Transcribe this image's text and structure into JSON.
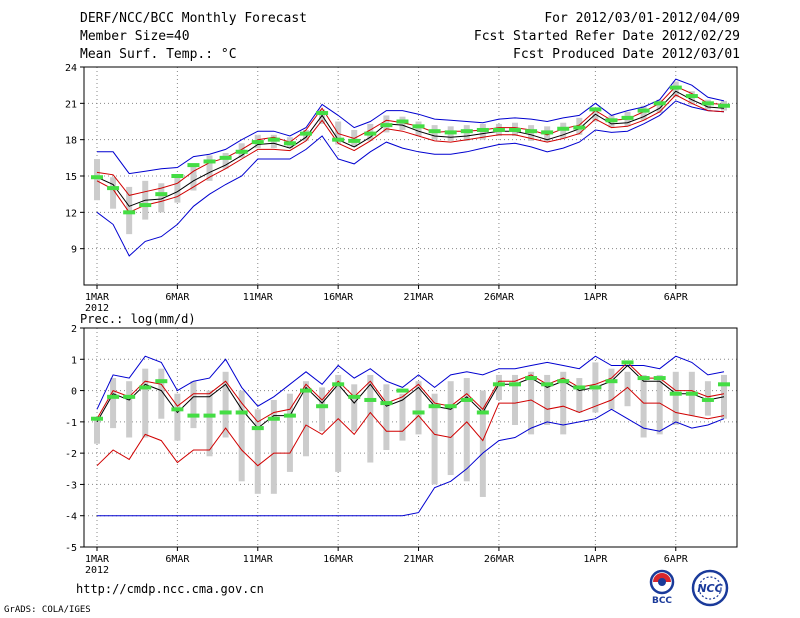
{
  "header": {
    "title": "DERF/NCC/BCC Monthly Forecast",
    "member_size": "Member Size=40",
    "variable": "Mean Surf. Temp.: °C",
    "forecast_period": "For 2012/03/01-2012/04/09",
    "start_refer_date": "Fcst Started Refer Date 2012/02/29",
    "produced_date": "Fcst Produced Date 2012/03/01"
  },
  "footer": {
    "url": "http://cmdp.ncc.cma.gov.cn",
    "grads_credit": "GrADS: COLA/IGES",
    "logo_bcc_text": "BCC",
    "logo_ncc_text": "NCC"
  },
  "colors": {
    "max_line": "#0000d0",
    "min_line": "#d00000",
    "mean_line": "#000000",
    "median_bar": "#44dd44",
    "box": "#cccccc",
    "grid": "#888888"
  },
  "chart_data": [
    {
      "type": "box-ensemble",
      "title": "Mean Surf. Temp.: °C",
      "ylabel": "°C",
      "ylim": [
        6,
        24
      ],
      "yticks": [
        9,
        12,
        15,
        18,
        21,
        24
      ],
      "xtick_labels": [
        "1MAR",
        "6MAR",
        "11MAR",
        "16MAR",
        "21MAR",
        "26MAR",
        "1APR",
        "6APR"
      ],
      "xtick_days": [
        1,
        6,
        11,
        16,
        21,
        26,
        32,
        37
      ],
      "year_label": "2012",
      "n_days": 40,
      "max": [
        17.0,
        17.0,
        15.2,
        15.4,
        15.6,
        15.7,
        16.6,
        16.8,
        17.2,
        18.0,
        18.7,
        18.7,
        18.3,
        19.0,
        20.9,
        20.0,
        19.0,
        19.5,
        20.4,
        20.4,
        20.1,
        19.7,
        19.6,
        19.5,
        19.4,
        19.7,
        19.8,
        19.7,
        19.5,
        19.8,
        20.0,
        21.0,
        20.0,
        20.4,
        20.7,
        21.3,
        23.0,
        22.5,
        21.5,
        21.2
      ],
      "min": [
        12.0,
        11.0,
        8.4,
        9.6,
        10.0,
        11.0,
        12.5,
        13.5,
        14.3,
        15.0,
        16.4,
        16.4,
        16.4,
        17.2,
        18.3,
        16.4,
        16.0,
        17.0,
        17.8,
        17.3,
        17.0,
        16.8,
        16.8,
        17.0,
        17.3,
        17.6,
        17.7,
        17.4,
        17.0,
        17.3,
        17.8,
        18.8,
        18.6,
        18.7,
        19.3,
        20.0,
        21.2,
        20.7,
        20.4,
        20.3
      ],
      "mean": [
        14.9,
        14.3,
        12.5,
        13.0,
        13.1,
        13.7,
        14.6,
        15.3,
        15.9,
        16.7,
        17.6,
        17.7,
        17.3,
        18.2,
        20.0,
        18.0,
        17.4,
        18.2,
        19.3,
        19.2,
        18.7,
        18.3,
        18.2,
        18.3,
        18.5,
        18.7,
        18.7,
        18.4,
        18.0,
        18.4,
        18.9,
        20.1,
        19.3,
        19.4,
        19.9,
        20.6,
        22.0,
        21.3,
        20.7,
        20.6
      ],
      "upper": [
        15.3,
        15.1,
        13.4,
        13.7,
        14.0,
        14.4,
        15.4,
        16.1,
        16.5,
        17.2,
        18.0,
        18.2,
        17.8,
        18.8,
        20.6,
        18.5,
        18.1,
        18.8,
        19.6,
        19.4,
        19.1,
        18.6,
        18.7,
        18.7,
        18.8,
        19.0,
        19.0,
        18.8,
        18.4,
        18.9,
        19.2,
        20.4,
        19.6,
        19.7,
        20.3,
        21.0,
        22.4,
        21.8,
        21.0,
        20.9
      ],
      "lower": [
        14.6,
        13.9,
        12.0,
        12.6,
        12.9,
        13.3,
        14.1,
        14.9,
        15.6,
        16.4,
        17.2,
        17.2,
        17.1,
        17.9,
        19.6,
        17.7,
        17.1,
        17.9,
        18.9,
        18.7,
        18.3,
        17.9,
        17.8,
        18.0,
        18.2,
        18.4,
        18.4,
        18.1,
        17.8,
        18.1,
        18.5,
        19.7,
        19.0,
        19.1,
        19.6,
        20.3,
        21.7,
        21.0,
        20.4,
        20.3
      ],
      "median": [
        14.9,
        14.0,
        12.0,
        12.6,
        13.5,
        15.0,
        15.9,
        16.2,
        16.5,
        17.0,
        17.8,
        18.0,
        17.7,
        18.5,
        20.2,
        18.0,
        17.9,
        18.5,
        19.2,
        19.5,
        19.1,
        18.7,
        18.6,
        18.7,
        18.8,
        18.8,
        18.8,
        18.7,
        18.6,
        18.9,
        19.0,
        20.5,
        19.6,
        19.8,
        20.4,
        21.0,
        22.3,
        21.6,
        21.0,
        20.8
      ],
      "box_low": [
        13.0,
        12.3,
        10.2,
        11.4,
        12.0,
        12.8,
        13.8,
        14.6,
        15.6,
        16.5,
        17.3,
        17.3,
        17.3,
        17.9,
        19.3,
        17.6,
        17.4,
        17.9,
        18.6,
        18.8,
        18.3,
        18.0,
        17.9,
        17.9,
        18.0,
        18.3,
        18.3,
        17.9,
        17.8,
        18.1,
        18.4,
        19.5,
        19.0,
        19.1,
        19.6,
        20.2,
        21.5,
        20.9,
        20.5,
        20.4
      ],
      "box_high": [
        16.4,
        14.9,
        14.1,
        14.6,
        14.4,
        15.1,
        15.8,
        16.7,
        16.9,
        17.7,
        18.4,
        18.4,
        18.2,
        18.8,
        20.5,
        19.5,
        18.8,
        19.3,
        20.0,
        19.9,
        19.5,
        19.2,
        19.1,
        19.2,
        19.3,
        19.3,
        19.4,
        19.2,
        19.1,
        19.4,
        19.8,
        20.6,
        20.0,
        20.3,
        20.8,
        21.3,
        22.8,
        22.0,
        21.3,
        21.2
      ]
    },
    {
      "type": "box-ensemble",
      "title": "Prec.: log(mm/d)",
      "ylabel": "log(mm/d)",
      "ylim": [
        -5,
        2
      ],
      "yticks": [
        -5,
        -4,
        -3,
        -2,
        -1,
        0,
        1,
        2
      ],
      "xtick_labels": [
        "1MAR",
        "6MAR",
        "11MAR",
        "16MAR",
        "21MAR",
        "26MAR",
        "1APR",
        "6APR"
      ],
      "xtick_days": [
        1,
        6,
        11,
        16,
        21,
        26,
        32,
        37
      ],
      "year_label": "2012",
      "n_days": 40,
      "max": [
        -0.6,
        0.5,
        0.4,
        1.1,
        0.9,
        0.0,
        0.3,
        0.4,
        1.0,
        0.1,
        -0.5,
        -0.2,
        0.2,
        0.6,
        0.2,
        0.8,
        0.4,
        0.7,
        0.3,
        0.1,
        0.5,
        0.1,
        0.5,
        0.6,
        0.5,
        0.7,
        0.7,
        0.8,
        0.9,
        0.8,
        0.7,
        1.1,
        0.8,
        0.8,
        0.8,
        0.7,
        1.1,
        0.9,
        0.5,
        0.6
      ],
      "min": [
        -4.0,
        -4.0,
        -4.0,
        -4.0,
        -4.0,
        -4.0,
        -4.0,
        -4.0,
        -4.0,
        -4.0,
        -4.0,
        -4.0,
        -4.0,
        -4.0,
        -4.0,
        -4.0,
        -4.0,
        -4.0,
        -4.0,
        -4.0,
        -3.9,
        -3.1,
        -2.9,
        -2.5,
        -2.0,
        -1.6,
        -1.5,
        -1.2,
        -1.0,
        -1.1,
        -1.0,
        -0.9,
        -0.6,
        -0.9,
        -1.2,
        -1.3,
        -1.0,
        -1.2,
        -1.1,
        -0.9
      ],
      "mean": [
        -1.0,
        -0.1,
        -0.3,
        0.2,
        0.0,
        -0.7,
        -0.2,
        -0.2,
        0.2,
        -0.6,
        -1.2,
        -0.8,
        -0.8,
        0.1,
        -0.4,
        0.2,
        -0.4,
        0.2,
        -0.5,
        -0.3,
        0.1,
        -0.5,
        -0.6,
        -0.2,
        -0.7,
        0.2,
        0.2,
        0.4,
        0.1,
        0.3,
        0.0,
        0.1,
        0.3,
        0.8,
        0.3,
        0.3,
        -0.1,
        -0.1,
        -0.3,
        -0.2
      ],
      "upper": [
        -0.9,
        0.0,
        -0.2,
        0.3,
        0.2,
        -0.5,
        -0.1,
        -0.1,
        0.3,
        -0.4,
        -1.0,
        -0.7,
        -0.6,
        0.2,
        -0.3,
        0.3,
        -0.2,
        0.3,
        -0.4,
        -0.2,
        0.2,
        -0.4,
        -0.5,
        -0.1,
        -0.6,
        0.3,
        0.3,
        0.5,
        0.2,
        0.4,
        0.1,
        0.2,
        0.4,
        0.9,
        0.4,
        0.4,
        0.0,
        0.0,
        -0.2,
        -0.1
      ],
      "lower": [
        -2.4,
        -1.9,
        -2.2,
        -1.4,
        -1.6,
        -2.3,
        -1.9,
        -1.9,
        -1.2,
        -1.9,
        -2.4,
        -2.0,
        -2.0,
        -1.1,
        -1.4,
        -0.9,
        -1.4,
        -0.7,
        -1.3,
        -1.3,
        -0.8,
        -1.4,
        -1.5,
        -1.0,
        -1.6,
        -0.4,
        -0.4,
        -0.3,
        -0.6,
        -0.5,
        -0.7,
        -0.5,
        -0.3,
        0.1,
        -0.4,
        -0.4,
        -0.7,
        -0.8,
        -0.9,
        -0.8
      ],
      "median": [
        -0.9,
        -0.2,
        -0.2,
        0.1,
        0.3,
        -0.6,
        -0.8,
        -0.8,
        -0.7,
        -0.7,
        -1.2,
        -0.9,
        -0.8,
        0.0,
        -0.5,
        0.2,
        -0.2,
        -0.3,
        -0.4,
        0.0,
        -0.7,
        -0.5,
        -0.5,
        -0.3,
        -0.7,
        0.2,
        0.2,
        0.4,
        0.2,
        0.3,
        0.1,
        0.1,
        0.3,
        0.9,
        0.4,
        0.4,
        -0.1,
        -0.1,
        -0.3,
        0.2
      ],
      "box_low": [
        -1.7,
        -1.2,
        -1.5,
        -1.5,
        -0.9,
        -1.6,
        -1.2,
        -2.1,
        -1.5,
        -2.9,
        -3.3,
        -3.3,
        -2.6,
        -2.1,
        -1.3,
        -2.6,
        -1.3,
        -2.3,
        -1.9,
        -1.6,
        -1.4,
        -3.0,
        -2.7,
        -2.9,
        -3.4,
        -0.3,
        -1.1,
        -1.4,
        -1.1,
        -1.4,
        -0.7,
        -0.7,
        -0.6,
        -0.5,
        -1.5,
        -1.4,
        -1.1,
        -0.8,
        -0.8,
        -0.9
      ],
      "box_high": [
        -0.9,
        0.4,
        0.3,
        0.7,
        0.7,
        -0.1,
        0.3,
        0.0,
        0.6,
        0.0,
        -0.6,
        -0.3,
        -0.1,
        0.3,
        0.1,
        0.5,
        0.2,
        0.5,
        0.2,
        -0.1,
        0.3,
        -0.1,
        0.3,
        0.4,
        0.0,
        0.5,
        0.5,
        0.6,
        0.5,
        0.6,
        0.4,
        0.9,
        0.7,
        0.6,
        0.5,
        0.5,
        0.6,
        0.6,
        0.3,
        0.5
      ]
    }
  ]
}
